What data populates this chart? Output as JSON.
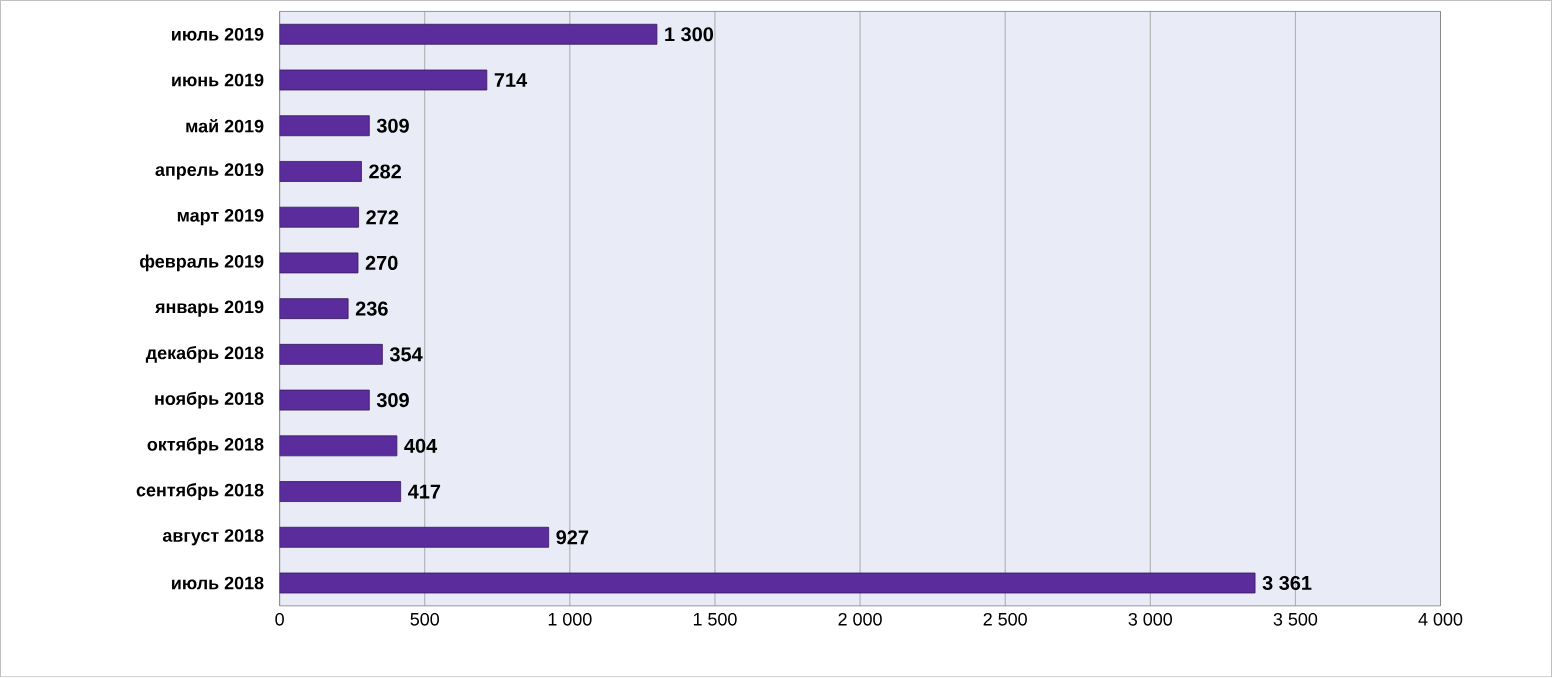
{
  "chart_data": {
    "type": "bar",
    "orientation": "horizontal",
    "categories": [
      "июль 2019",
      "июнь 2019",
      "май 2019",
      "апрель 2019",
      "март 2019",
      "февраль 2019",
      "январь 2019",
      "декабрь 2018",
      "ноябрь 2018",
      "октябрь 2018",
      "сентябрь 2018",
      "август 2018",
      "июль 2018"
    ],
    "values": [
      1300,
      714,
      309,
      282,
      272,
      270,
      236,
      354,
      309,
      404,
      417,
      927,
      3361
    ],
    "value_labels": [
      "1 300",
      "714",
      "309",
      "282",
      "272",
      "270",
      "236",
      "354",
      "309",
      "404",
      "417",
      "927",
      "3 361"
    ],
    "color": "#5a2c9c",
    "xlim": [
      0,
      4000
    ],
    "xticks": [
      0,
      500,
      {
        "value": 1000,
        "label": "1 000"
      },
      {
        "value": 1500,
        "label": "1 500"
      },
      {
        "value": 2000,
        "label": "2 000"
      },
      {
        "value": 2500,
        "label": "2 500"
      },
      {
        "value": 3000,
        "label": "3 000"
      },
      {
        "value": 3500,
        "label": "3 500"
      },
      {
        "value": 4000,
        "label": "4 000"
      }
    ],
    "grid": "x"
  }
}
